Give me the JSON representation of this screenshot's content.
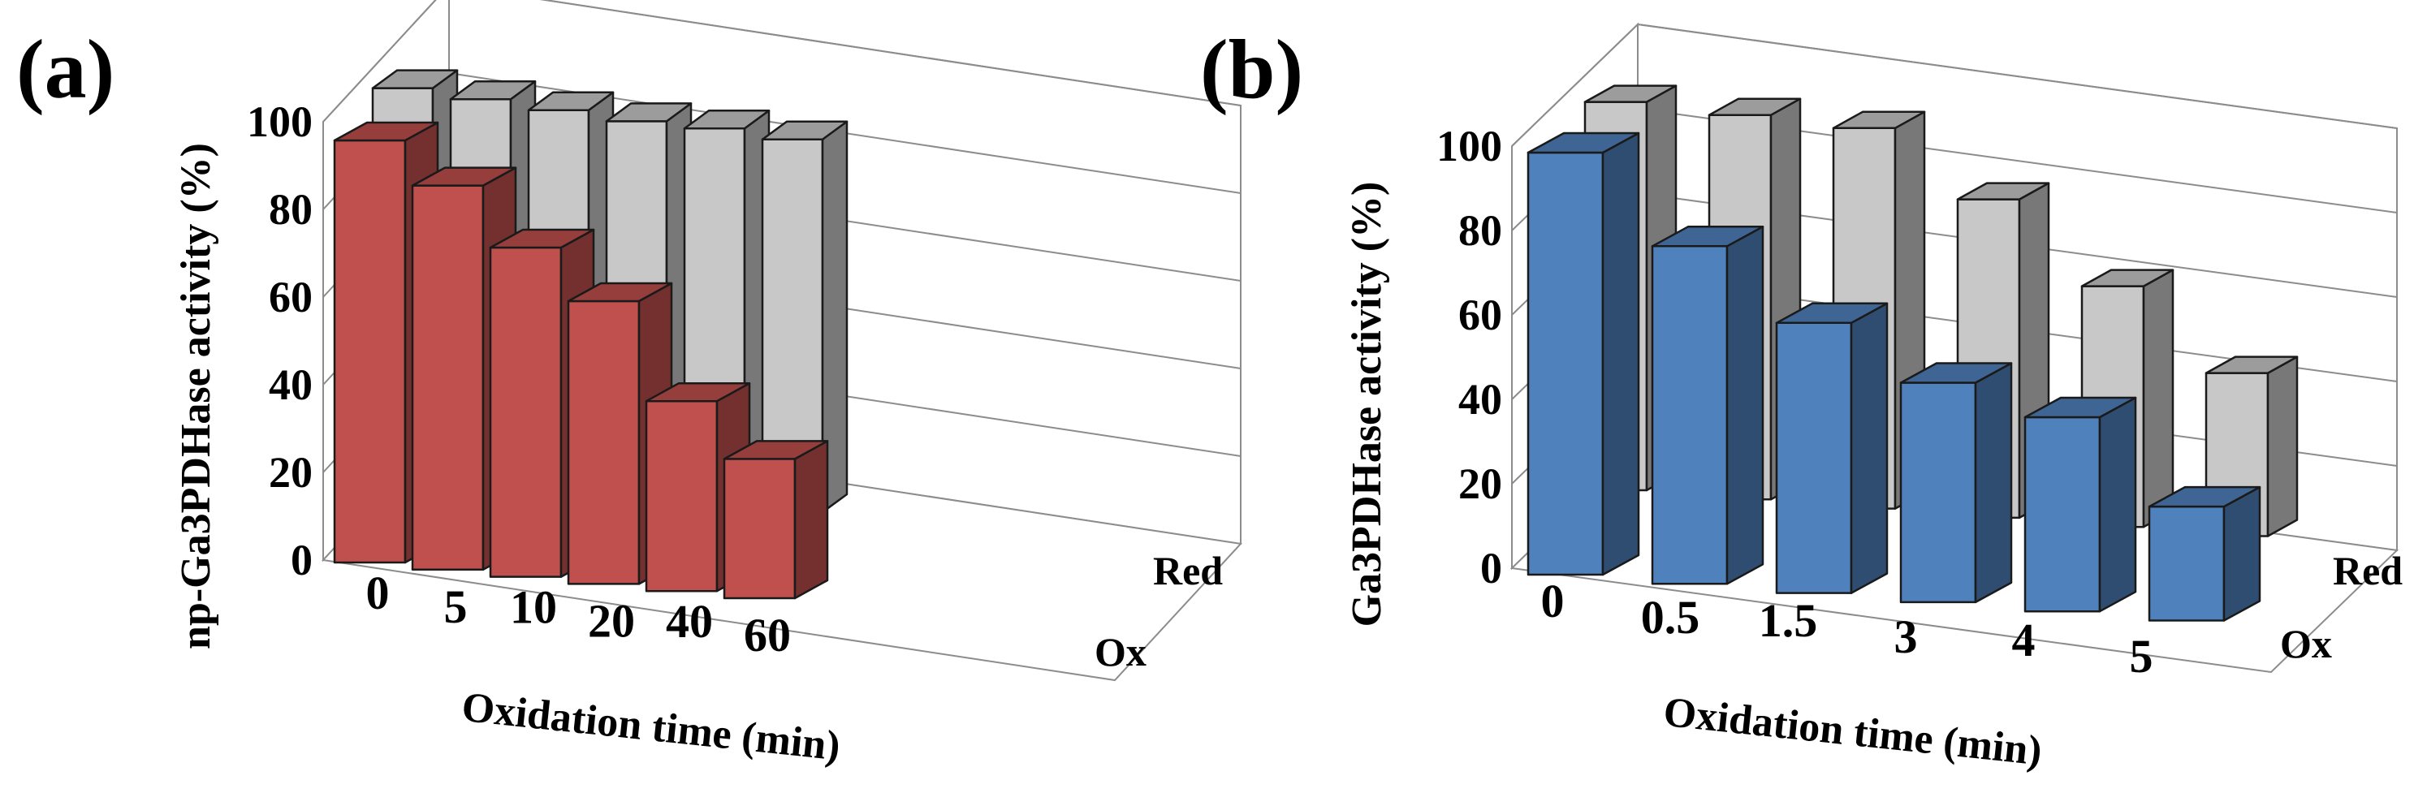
{
  "chart_data": [
    {
      "panel_label": "(a)",
      "type": "bar3d",
      "ylabel": "np-Ga3PDHase activity (%)",
      "xlabel": "Oxidation time (min)",
      "ylim": [
        0,
        100
      ],
      "yticks": [
        "0",
        "20",
        "40",
        "60",
        "80",
        "100"
      ],
      "categories": [
        "0",
        "5",
        "10",
        "20",
        "40",
        "60"
      ],
      "series": [
        {
          "name": "Red",
          "color": "#c8c8c8",
          "values": [
            100,
            99,
            98,
            97,
            97,
            96
          ]
        },
        {
          "name": "Ox",
          "color": "#c0504d",
          "values": [
            100,
            91,
            78,
            67,
            45,
            33
          ]
        }
      ]
    },
    {
      "panel_label": "(b)",
      "type": "bar3d",
      "ylabel": "Ga3PDHase activity (%)",
      "xlabel": "Oxidation time (min)",
      "ylim": [
        0,
        100
      ],
      "yticks": [
        "0",
        "20",
        "40",
        "60",
        "80",
        "100"
      ],
      "categories": [
        "0",
        "0.5",
        "1.5",
        "3",
        "4",
        "5"
      ],
      "series": [
        {
          "name": "Red",
          "color": "#c8c8c8",
          "values": [
            100,
            99,
            98,
            82,
            62,
            42
          ]
        },
        {
          "name": "Ox",
          "color": "#4f81bd",
          "values": [
            100,
            80,
            64,
            52,
            46,
            27
          ]
        }
      ]
    }
  ]
}
